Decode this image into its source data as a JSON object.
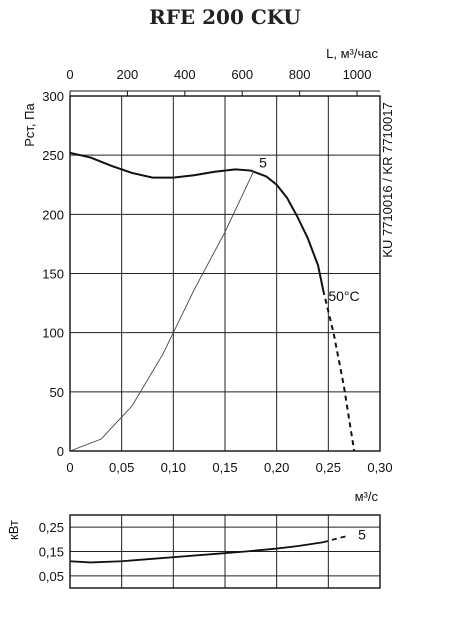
{
  "title": "RFE 200 CKU",
  "chart_data": [
    {
      "type": "line",
      "title": "RFE 200 CKU",
      "xlabel": "м³/с",
      "ylabel": "Рст, Па",
      "xlim": [
        0,
        0.3
      ],
      "ylim": [
        0,
        300
      ],
      "x_ticks": [
        "0",
        "0,05",
        "0,10",
        "0,15",
        "0,20",
        "0,25",
        "0,30"
      ],
      "y_ticks": [
        "0",
        "50",
        "100",
        "150",
        "200",
        "250",
        "300"
      ],
      "top_axis": {
        "label": "L, м³/час",
        "ticks": [
          "0",
          "200",
          "400",
          "600",
          "800",
          "1000"
        ],
        "values": [
          0,
          200,
          400,
          600,
          800,
          1000
        ],
        "unit_conversion_m3h_per_m3s": 3600
      },
      "right_label": "KU 7710016 / KR 7710017",
      "grid": true,
      "series": [
        {
          "name": "",
          "style": "solid",
          "x": [
            0.0,
            0.02,
            0.04,
            0.06,
            0.08,
            0.1,
            0.12,
            0.14,
            0.16,
            0.175,
            0.19,
            0.2,
            0.21,
            0.22,
            0.23,
            0.24,
            0.245
          ],
          "y": [
            252,
            248,
            241,
            235,
            231,
            231,
            233,
            236,
            238,
            237,
            232,
            225,
            214,
            198,
            180,
            157,
            136
          ]
        },
        {
          "name": "",
          "style": "dashed",
          "x": [
            0.245,
            0.255,
            0.265,
            0.275
          ],
          "y": [
            136,
            100,
            55,
            0
          ]
        },
        {
          "name": "",
          "style": "thin",
          "x": [
            0.0,
            0.03,
            0.06,
            0.09,
            0.12,
            0.15,
            0.178
          ],
          "y": [
            0,
            10,
            38,
            82,
            136,
            185,
            237
          ]
        }
      ],
      "annotations": [
        {
          "text": "5",
          "x": 0.183,
          "y": 244
        },
        {
          "text": "50°C",
          "x": 0.25,
          "y": 131
        }
      ]
    },
    {
      "type": "line",
      "ylabel": "кВт",
      "xlim": [
        0,
        0.3
      ],
      "ylim": [
        0,
        0.3
      ],
      "y_ticks": [
        "0,05",
        "0,15",
        "0,25"
      ],
      "y_tick_values": [
        0.05,
        0.15,
        0.25
      ],
      "grid": true,
      "series": [
        {
          "name": "",
          "style": "solid",
          "x": [
            0.0,
            0.02,
            0.05,
            0.08,
            0.11,
            0.14,
            0.17,
            0.2,
            0.22,
            0.245
          ],
          "y": [
            0.11,
            0.105,
            0.11,
            0.12,
            0.13,
            0.14,
            0.15,
            0.162,
            0.172,
            0.188
          ]
        },
        {
          "name": "",
          "style": "dashed",
          "x": [
            0.245,
            0.26,
            0.27
          ],
          "y": [
            0.188,
            0.205,
            0.215
          ]
        }
      ],
      "annotations": [
        {
          "text": "5",
          "x": 0.275,
          "y": 0.22
        }
      ]
    }
  ]
}
